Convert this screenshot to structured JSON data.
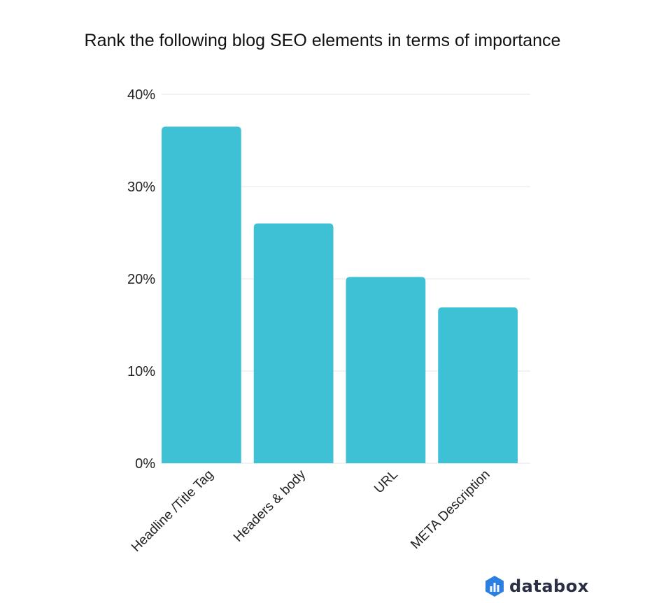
{
  "chart_data": {
    "type": "bar",
    "title": "Rank the following blog SEO elements in terms of importance",
    "categories": [
      "Headline /Title Tag",
      "Headers & body",
      "URL",
      "META Description"
    ],
    "values": [
      36.5,
      26.0,
      20.2,
      16.9
    ],
    "ylim": [
      0,
      40
    ],
    "yticks": [
      0,
      10,
      20,
      30,
      40
    ],
    "ytick_labels": [
      "0%",
      "10%",
      "20%",
      "30%",
      "40%"
    ],
    "xlabel": "",
    "ylabel": "",
    "grid": true,
    "legend": "none",
    "colors": {
      "bar": "#3ec1d5",
      "grid": "#e6e6e6"
    }
  },
  "brand": {
    "name": "databox",
    "logo_icon": "databox-logo-icon",
    "logo_color": "#2a7fe0"
  }
}
